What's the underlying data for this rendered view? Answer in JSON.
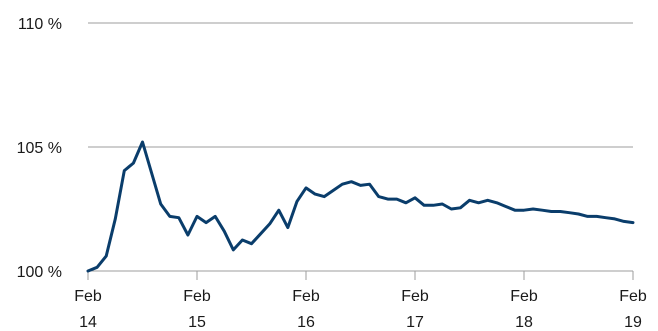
{
  "chart_data": {
    "type": "line",
    "title": "",
    "xlabel": "",
    "ylabel": "",
    "ylim": [
      100,
      110
    ],
    "yticks": [
      {
        "value": 100,
        "label": "100 %"
      },
      {
        "value": 105,
        "label": "105 %"
      },
      {
        "value": 110,
        "label": "110 %"
      }
    ],
    "xticks": [
      {
        "index": 0,
        "month": "Feb",
        "year": "14"
      },
      {
        "index": 12,
        "month": "Feb",
        "year": "15"
      },
      {
        "index": 24,
        "month": "Feb",
        "year": "16"
      },
      {
        "index": 36,
        "month": "Feb",
        "year": "17"
      },
      {
        "index": 48,
        "month": "Feb",
        "year": "18"
      },
      {
        "index": 60,
        "month": "Feb",
        "year": "19"
      }
    ],
    "grid": true,
    "colors": {
      "series": "#0a3d6b",
      "grid": "#9e9e9e",
      "text": "#1a1a1a"
    },
    "series": [
      {
        "values": [
          100.0,
          100.15,
          100.6,
          102.1,
          104.05,
          104.35,
          105.2,
          103.95,
          102.7,
          102.2,
          102.15,
          101.45,
          102.2,
          101.95,
          102.2,
          101.6,
          100.85,
          101.25,
          101.1,
          101.5,
          101.9,
          102.45,
          101.75,
          102.8,
          103.35,
          103.1,
          103.0,
          103.25,
          103.5,
          103.6,
          103.45,
          103.5,
          103.0,
          102.9,
          102.9,
          102.75,
          102.95,
          102.65,
          102.65,
          102.7,
          102.5,
          102.55,
          102.85,
          102.75,
          102.85,
          102.75,
          102.6,
          102.45,
          102.45,
          102.5,
          102.45,
          102.4,
          102.4,
          102.35,
          102.3,
          102.2,
          102.2,
          102.15,
          102.1,
          102.0,
          101.95
        ]
      }
    ]
  }
}
